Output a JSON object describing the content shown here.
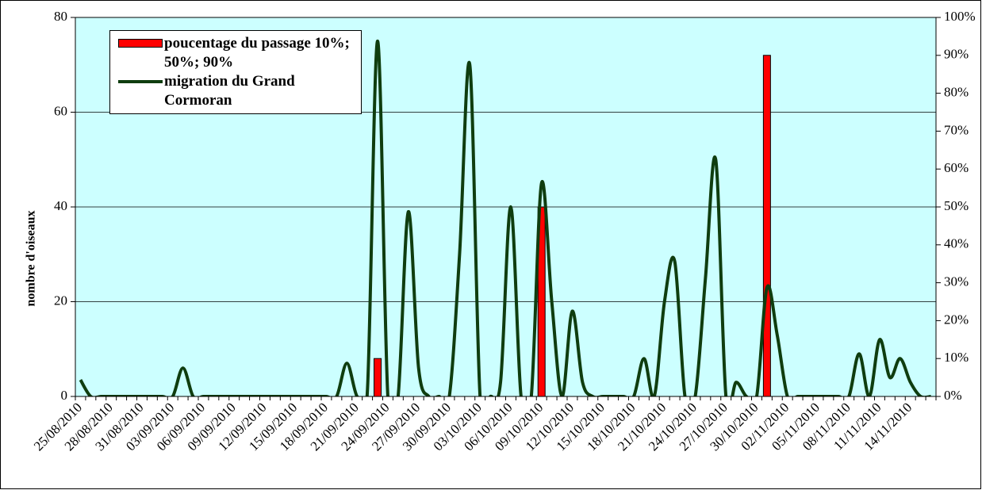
{
  "chart_data": {
    "type": "bar_line",
    "y_label": "nombre d'oiseaux",
    "categories": [
      "25/08/2010",
      null,
      null,
      "28/08/2010",
      null,
      null,
      "31/08/2010",
      null,
      null,
      "03/09/2010",
      null,
      null,
      "06/09/2010",
      null,
      null,
      "09/09/2010",
      null,
      null,
      "12/09/2010",
      null,
      null,
      "15/09/2010",
      null,
      null,
      "18/09/2010",
      null,
      null,
      "21/09/2010",
      null,
      null,
      "24/09/2010",
      null,
      null,
      "27/09/2010",
      null,
      null,
      "30/09/2010",
      null,
      null,
      "03/10/2010",
      null,
      null,
      "06/10/2010",
      null,
      null,
      "09/10/2010",
      null,
      null,
      "12/10/2010",
      null,
      null,
      "15/10/2010",
      null,
      null,
      "18/10/2010",
      null,
      null,
      "21/10/2010",
      null,
      null,
      "24/10/2010",
      null,
      null,
      "27/10/2010",
      null,
      null,
      "30/10/2010",
      null,
      null,
      "02/11/2010",
      null,
      null,
      "05/11/2010",
      null,
      null,
      "08/11/2010",
      null,
      null,
      "11/11/2010",
      null,
      null,
      "14/11/2010",
      null,
      null
    ],
    "series": [
      {
        "name": "poucentage du passage 10%; 50%; 90%",
        "type": "bar",
        "axis": "y2",
        "color": "#ff0000",
        "values": [
          null,
          null,
          null,
          null,
          null,
          null,
          null,
          null,
          null,
          null,
          null,
          null,
          null,
          null,
          null,
          null,
          null,
          null,
          null,
          null,
          null,
          null,
          null,
          null,
          null,
          null,
          null,
          null,
          null,
          10,
          null,
          null,
          null,
          null,
          null,
          null,
          null,
          null,
          null,
          null,
          null,
          null,
          null,
          null,
          null,
          50,
          null,
          null,
          null,
          null,
          null,
          null,
          null,
          null,
          null,
          null,
          null,
          null,
          null,
          null,
          null,
          null,
          null,
          null,
          null,
          null,
          null,
          90,
          null,
          null,
          null,
          null,
          null,
          null,
          null,
          null,
          null,
          null,
          null,
          null,
          null,
          null,
          null,
          null
        ]
      },
      {
        "name": "migration du Grand Cormoran",
        "type": "line",
        "color": "#0f3d0f",
        "values": [
          3.5,
          0,
          0,
          0,
          0,
          0,
          0,
          0,
          0,
          0,
          6,
          0,
          0,
          0,
          0,
          0,
          0,
          0,
          0,
          0,
          0,
          0,
          0,
          0,
          0,
          0,
          7,
          0,
          1,
          75,
          0,
          0,
          39,
          6,
          0,
          0,
          0,
          30,
          70,
          0,
          0,
          3,
          40,
          0,
          0,
          45,
          20,
          0,
          18,
          3,
          0,
          0,
          0,
          0,
          0,
          8,
          0,
          20,
          28.5,
          0,
          0,
          25,
          50,
          0,
          3,
          0,
          0,
          23,
          13,
          0,
          0,
          0,
          0,
          0,
          0,
          0,
          9,
          0,
          12,
          4,
          8,
          3,
          0,
          0
        ]
      }
    ],
    "ylim": [
      0,
      80
    ],
    "yticks": [
      0,
      20,
      40,
      60,
      80
    ],
    "y2lim": [
      0,
      100
    ],
    "y2ticks": [
      {
        "value": 0,
        "label": "0%"
      },
      {
        "value": 10,
        "label": "10%"
      },
      {
        "value": 20,
        "label": "20%"
      },
      {
        "value": 30,
        "label": "30%"
      },
      {
        "value": 40,
        "label": "40%"
      },
      {
        "value": 50,
        "label": "50%"
      },
      {
        "value": 60,
        "label": "60%"
      },
      {
        "value": 70,
        "label": "70%"
      },
      {
        "value": 80,
        "label": "80%"
      },
      {
        "value": 90,
        "label": "90%"
      },
      {
        "value": 100,
        "label": "100%"
      }
    ],
    "grid": true,
    "background": "#ccffff",
    "smooth": true
  }
}
